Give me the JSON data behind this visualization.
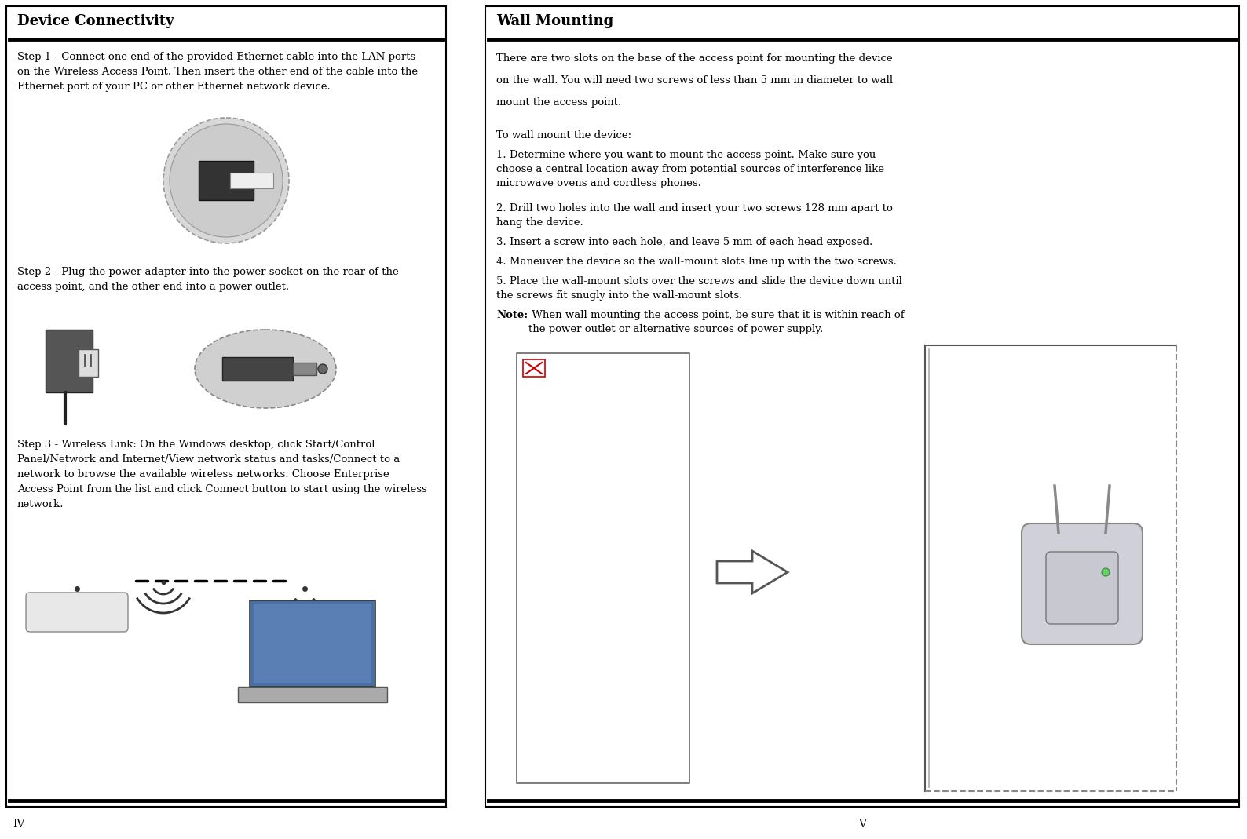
{
  "bg_color": "#ffffff",
  "left_panel": {
    "title": "Device Connectivity",
    "title_fontsize": 13,
    "body_fontsize": 9.5,
    "step1": "Step 1 - Connect one end of the provided Ethernet cable into the LAN ports\non the Wireless Access Point. Then insert the other end of the cable into the\nEthernet port of your PC or other Ethernet network device.",
    "step2": "Step 2 - Plug the power adapter into the power socket on the rear of the\naccess point, and the other end into a power outlet.",
    "step3": "Step 3 - Wireless Link: On the Windows desktop, click Start/Control\nPanel/Network and Internet/View network status and tasks/Connect to a\nnetwork to browse the available wireless networks. Choose Enterprise\nAccess Point from the list and click Connect button to start using the wireless\nnetwork."
  },
  "right_panel": {
    "title": "Wall Mounting",
    "title_fontsize": 13,
    "body_fontsize": 9.5,
    "intro_line1": "There are two slots on the base of the access point for mounting the device",
    "intro_line2": "on the wall. You will need two screws of less than 5 mm in diameter to wall",
    "intro_line3": "mount the access point.",
    "to_wall": "To wall mount the device:",
    "step1": "1. Determine where you want to mount the access point. Make sure you\nchoose a central location away from potential sources of interference like\nmicrowave ovens and cordless phones.",
    "step2": "2. Drill two holes into the wall and insert your two screws 128 mm apart to\nhang the device.",
    "step3": "3. Insert a screw into each hole, and leave 5 mm of each head exposed.",
    "step4": "4. Maneuver the device so the wall-mount slots line up with the two screws.",
    "step5": "5. Place the wall-mount slots over the screws and slide the device down until\nthe screws fit snugly into the wall-mount slots.",
    "note_bold": "Note:",
    "note_text": " When wall mounting the access point, be sure that it is within reach of\nthe power outlet or alternative sources of power supply."
  },
  "page_num_left": "IV",
  "page_num_right": "V"
}
